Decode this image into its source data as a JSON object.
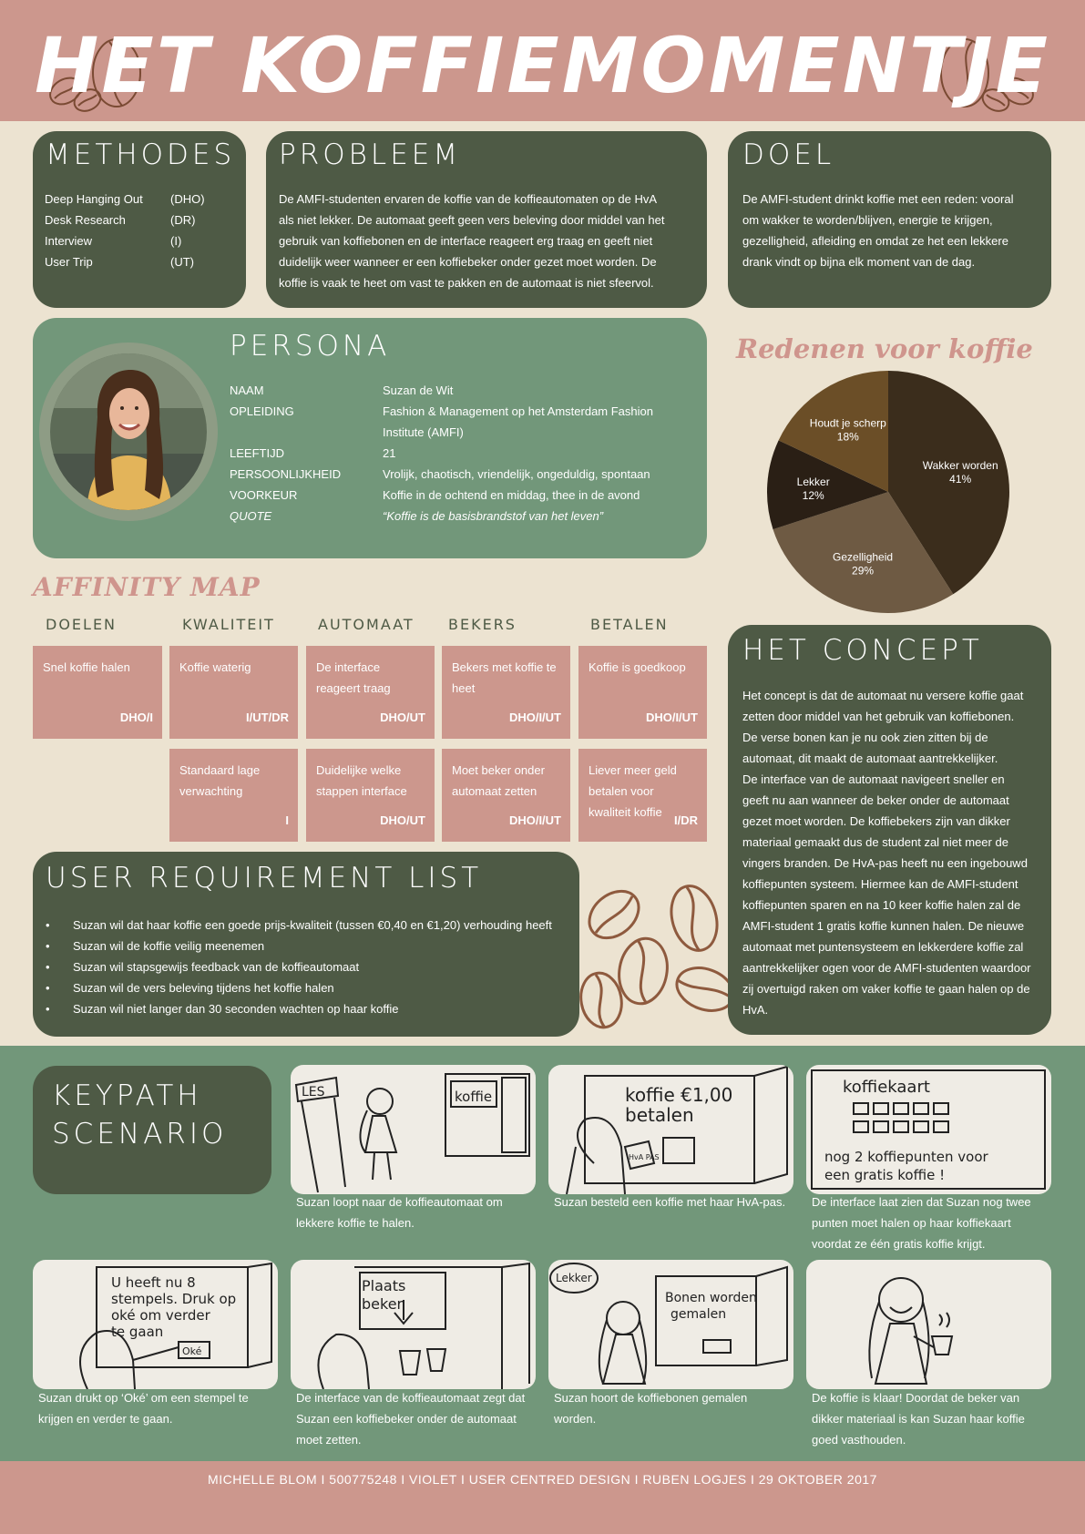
{
  "header": {
    "title": "HET KOFFIEMOMENTJE"
  },
  "methodes": {
    "title": "METHODES",
    "items": [
      {
        "name": "Deep Hanging Out",
        "code": "(DHO)"
      },
      {
        "name": "Desk Research",
        "code": "(DR)"
      },
      {
        "name": "Interview",
        "code": "(I)"
      },
      {
        "name": "User Trip",
        "code": "(UT)"
      }
    ]
  },
  "probleem": {
    "title": "PROBLEEM",
    "lines": [
      "De AMFI-studenten ervaren de koffie van de koffieautomaten op de HvA",
      "als niet lekker. De automaat geeft geen vers beleving door middel van het",
      "gebruik van koffiebonen en de interface reageert erg traag en geeft niet",
      "duidelijk weer wanneer er een koffiebeker onder gezet moet worden. De",
      "koffie is vaak te heet om vast te pakken en de automaat is niet sfeervol."
    ]
  },
  "doel": {
    "title": "DOEL",
    "lines": [
      "De AMFI-student drinkt koffie met een reden: vooral",
      "om wakker te worden/blijven, energie te krijgen,",
      "gezelligheid, afleiding en omdat ze het een lekkere",
      "drank vindt op bijna elk moment van de dag."
    ]
  },
  "persona": {
    "title": "PERSONA",
    "rows": [
      {
        "label": "NAAM",
        "value": "Suzan de Wit"
      },
      {
        "label": "OPLEIDING",
        "value": "Fashion & Management op het Amsterdam Fashion"
      },
      {
        "label": "",
        "value": "Institute (AMFI)"
      },
      {
        "label": "LEEFTIJD",
        "value": "21"
      },
      {
        "label": "PERSOONLIJKHEID",
        "value": "Vrolijk, chaotisch, vriendelijk, ongeduldig, spontaan"
      },
      {
        "label": "VOORKEUR",
        "value": "Koffie in de ochtend en middag, thee in de avond"
      },
      {
        "label": "QUOTE",
        "value": "“Koffie is de basisbrandstof van het leven”"
      }
    ]
  },
  "chart_data": {
    "type": "pie",
    "title": "Redenen voor koffie",
    "slices": [
      {
        "label": "Wakker worden",
        "pct": "41%",
        "value": 41,
        "color": "#3b2d1c"
      },
      {
        "label": "Gezelligheid",
        "pct": "29%",
        "value": 29,
        "color": "#6e5a43"
      },
      {
        "label": "Lekker",
        "pct": "12%",
        "value": 12,
        "color": "#2a1f15"
      },
      {
        "label": "Houdt je scherp",
        "pct": "18%",
        "value": 18,
        "color": "#6b4e27"
      }
    ]
  },
  "affinity": {
    "title": "AFFINITY MAP",
    "columns": [
      {
        "title": "DOELEN",
        "cards": [
          {
            "text": "Snel koffie halen",
            "code": "DHO/I"
          }
        ]
      },
      {
        "title": "KWALITEIT",
        "cards": [
          {
            "text": "Koffie waterig",
            "code": "I/UT/DR"
          },
          {
            "text": "Standaard lage verwachting",
            "code": "I"
          }
        ]
      },
      {
        "title": "AUTOMAAT",
        "cards": [
          {
            "text": "De interface reageert traag",
            "code": "DHO/UT"
          },
          {
            "text": "Duidelijke welke stappen interface",
            "code": "DHO/UT"
          }
        ]
      },
      {
        "title": "BEKERS",
        "cards": [
          {
            "text": "Bekers met koffie te heet",
            "code": "DHO/I/UT"
          },
          {
            "text": "Moet beker onder automaat zetten",
            "code": "DHO/I/UT"
          }
        ]
      },
      {
        "title": "BETALEN",
        "cards": [
          {
            "text": "Koffie is goedkoop",
            "code": "DHO/I/UT"
          },
          {
            "text": "Liever meer geld betalen voor kwaliteit koffie",
            "code": "I/DR"
          }
        ]
      }
    ]
  },
  "requirements": {
    "title": "USER REQUIREMENT LIST",
    "items": [
      "Suzan wil dat haar koffie een goede prijs-kwaliteit (tussen €0,40 en €1,20) verhouding heeft",
      "Suzan wil de koffie veilig meenemen",
      "Suzan wil stapsgewijs feedback van de koffieautomaat",
      "Suzan wil de vers beleving tijdens het koffie halen",
      "Suzan wil niet langer dan 30 seconden wachten op haar koffie"
    ]
  },
  "concept": {
    "title": "HET CONCEPT",
    "lines": [
      "Het concept is dat de automaat nu versere koffie gaat",
      "zetten door middel van het gebruik van koffiebonen.",
      "De verse bonen kan je nu ook zien zitten bij de",
      "automaat, dit maakt de automaat aantrekkelijker.",
      "De interface van de automaat navigeert sneller en",
      "geeft nu aan wanneer de beker onder de automaat",
      "gezet moet worden. De koffiebekers zijn van dikker",
      "materiaal gemaakt dus de student zal niet meer de",
      "vingers branden. De HvA-pas heeft nu een ingebouwd",
      "koffiepunten systeem. Hiermee kan de AMFI-student",
      "koffiepunten sparen en na 10 keer koffie halen zal de",
      "AMFI-student 1 gratis koffie kunnen halen. De nieuwe",
      "automaat met puntensysteem en lekkerdere koffie zal",
      "aantrekkelijker ogen voor de AMFI-studenten waardoor",
      "zij overtuigd raken om vaker koffie te gaan halen op de",
      "HvA."
    ]
  },
  "keypath": {
    "title_line1": "KEYPATH",
    "title_line2": "SCENARIO",
    "sketch_text": {
      "les": "LES",
      "koffie": "koffie",
      "betalen1": "koffie €1,00",
      "betalen2": "betalen",
      "hva": "HvA PAS",
      "kaart_title": "koffiekaart",
      "kaart_l1": "nog 2 koffiepunten voor",
      "kaart_l2": "een gratis koffie !",
      "stempel_l1": "U heeft nu 8",
      "stempel_l2": "stempels. Druk op",
      "stempel_l3": "oké om verder",
      "stempel_l4": "te gaan",
      "oke": "Oké",
      "plaats1": "Plaats",
      "plaats2": "beker",
      "lekker": "Lekker",
      "bonen1": "Bonen worden",
      "bonen2": "gemalen"
    },
    "captions": [
      [
        "Suzan loopt naar de koffieautomaat om",
        "lekkere koffie te halen."
      ],
      [
        "Suzan besteld een koffie met haar HvA-pas."
      ],
      [
        "De interface laat zien dat Suzan nog twee",
        "punten moet halen op haar koffiekaart",
        "voordat ze één gratis koffie krijgt."
      ],
      [
        "Suzan drukt op ‘Oké’ om een stempel te",
        "krijgen en verder te gaan."
      ],
      [
        "De interface van de koffieautomaat zegt dat",
        "Suzan een koffiebeker onder de automaat",
        "moet zetten."
      ],
      [
        "Suzan hoort de koffiebonen gemalen",
        "worden."
      ],
      [
        "De koffie is klaar! Doordat de beker van",
        "dikker materiaal is kan Suzan haar koffie",
        "goed vasthouden."
      ]
    ]
  },
  "footer": {
    "text": "MICHELLE BLOM I 500775248 I VIOLET I USER CENTRED DESIGN I RUBEN LOGJES I 29 OKTOBER 2017"
  }
}
